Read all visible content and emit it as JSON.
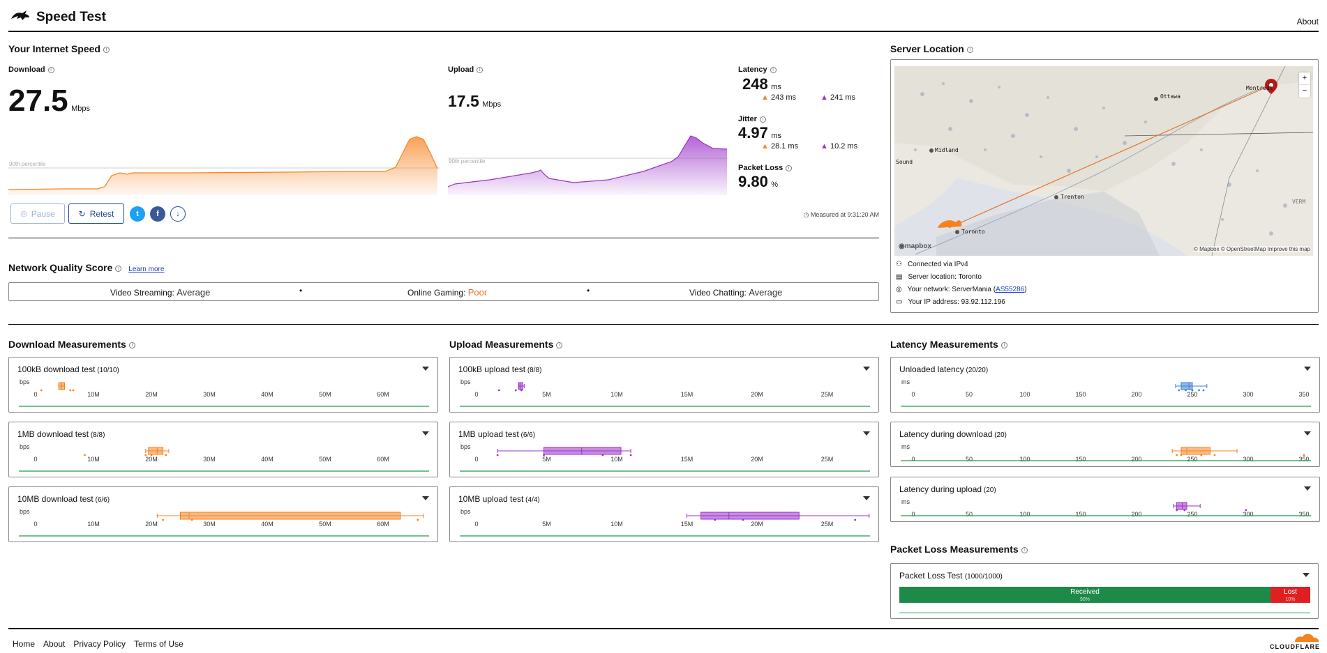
{
  "header": {
    "title": "Speed Test",
    "about": "About"
  },
  "speed": {
    "section_title": "Your Internet Speed",
    "download_label": "Download",
    "download_value": "27.5",
    "download_unit": "Mbps",
    "upload_label": "Upload",
    "upload_value": "17.5",
    "upload_unit": "Mbps",
    "percentile_label": "90th percentile",
    "latency_label": "Latency",
    "latency_value": "248",
    "latency_unit": "ms",
    "latency_down": "243 ms",
    "latency_up": "241 ms",
    "jitter_label": "Jitter",
    "jitter_value": "4.97",
    "jitter_unit": "ms",
    "jitter_down": "28.1 ms",
    "jitter_up": "10.2 ms",
    "packet_loss_label": "Packet Loss",
    "packet_loss_value": "9.80",
    "packet_loss_unit": "%",
    "pause_label": "Pause",
    "retest_label": "Retest",
    "measured_at": "Measured at 9:31:20 AM"
  },
  "nqs": {
    "title": "Network Quality Score",
    "learn_more": "Learn more",
    "items": [
      {
        "label": "Video Streaming:",
        "value": "Average",
        "color": "#333333"
      },
      {
        "label": "Online Gaming:",
        "value": "Poor",
        "color": "#e8742b"
      },
      {
        "label": "Video Chatting:",
        "value": "Average",
        "color": "#333333"
      }
    ]
  },
  "server": {
    "title": "Server Location",
    "map_labels": [
      "Ottawa",
      "Montreal",
      "Midland",
      "Sound",
      "Trenton",
      "Toronto",
      "VERM"
    ],
    "zoom_in": "+",
    "zoom_out": "−",
    "attribution": "© Mapbox © OpenStreetMap  Improve this map",
    "mapbox_logo": "mapbox",
    "connected": "Connected via IPv4",
    "location": "Server location: Toronto",
    "network_prefix": "Your network: ServerMania (",
    "network_as": "AS55286",
    "network_suffix": ")",
    "ip": "Your IP address: 93.92.112.196"
  },
  "download_measurements": {
    "title": "Download Measurements",
    "axis_unit": "bps",
    "ticks": [
      "0",
      "10M",
      "20M",
      "30M",
      "40M",
      "50M",
      "60M"
    ],
    "tests": [
      {
        "name": "100kB download test",
        "count": "(10/10)"
      },
      {
        "name": "1MB download test",
        "count": "(8/8)"
      },
      {
        "name": "10MB download test",
        "count": "(6/6)"
      }
    ]
  },
  "upload_measurements": {
    "title": "Upload Measurements",
    "axis_unit": "bps",
    "ticks": [
      "0",
      "5M",
      "10M",
      "15M",
      "20M",
      "25M"
    ],
    "tests": [
      {
        "name": "100kB upload test",
        "count": "(8/8)"
      },
      {
        "name": "1MB upload test",
        "count": "(6/6)"
      },
      {
        "name": "10MB upload test",
        "count": "(4/4)"
      }
    ]
  },
  "latency_measurements": {
    "title": "Latency Measurements",
    "axis_unit": "ms",
    "ticks": [
      "0",
      "50",
      "100",
      "150",
      "200",
      "250",
      "300",
      "350"
    ],
    "tests": [
      {
        "name": "Unloaded latency",
        "count": "(20/20)"
      },
      {
        "name": "Latency during download",
        "count": "(20)"
      },
      {
        "name": "Latency during upload",
        "count": "(20)"
      }
    ]
  },
  "packet_loss": {
    "title": "Packet Loss Measurements",
    "test_name": "Packet Loss Test",
    "test_count": "(1000/1000)",
    "received_label": "Received",
    "received_pct": "90%",
    "lost_label": "Lost",
    "lost_pct": "10%"
  },
  "footer": {
    "links": [
      "Home",
      "About",
      "Privacy Policy",
      "Terms of Use"
    ],
    "brand": "CLOUDFLARE"
  },
  "colors": {
    "download": "#f6821f",
    "upload": "#9b30c8",
    "latency": "#3b7dd8",
    "good": "#1d9a4d",
    "lost": "#e02020",
    "link": "#1a3fbf"
  }
}
